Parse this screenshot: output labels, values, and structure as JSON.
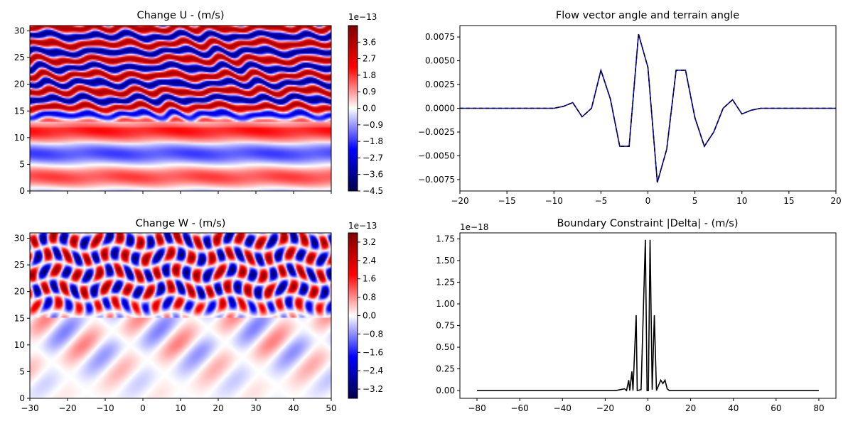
{
  "chart_data": [
    {
      "type": "heatmap",
      "title": "Change U - (m/s)",
      "xlabel": "",
      "ylabel": "",
      "xlim": [
        -30,
        50
      ],
      "ylim": [
        0,
        31
      ],
      "xticks": [],
      "yticks": [
        0,
        5,
        10,
        15,
        20,
        25,
        30
      ],
      "colormap": "seismic",
      "colorbar": {
        "offset_label": "1e−13",
        "range": [
          -4.5,
          4.5
        ],
        "ticks": [
          3.6,
          2.7,
          1.8,
          0.9,
          0.0,
          -0.9,
          -1.8,
          -2.7,
          -3.6,
          -4.5
        ],
        "tick_labels": [
          "3.6",
          "2.7",
          "1.8",
          "0.9",
          "0.0",
          "−0.9",
          "−1.8",
          "−2.7",
          "−3.6",
          "−4.5"
        ]
      }
    },
    {
      "type": "line",
      "title": "Flow vector angle and terrain angle",
      "xlabel": "",
      "ylabel": "",
      "xlim": [
        -20,
        20
      ],
      "ylim": [
        -0.0087,
        0.0087
      ],
      "xticks": [
        -20,
        -15,
        -10,
        -5,
        0,
        5,
        10,
        15,
        20
      ],
      "xtick_labels": [
        "−20",
        "−15",
        "−10",
        "−5",
        "0",
        "5",
        "10",
        "15",
        "20"
      ],
      "yticks": [
        0.0075,
        0.005,
        0.0025,
        0.0,
        -0.0025,
        -0.005,
        -0.0075
      ],
      "ytick_labels": [
        "0.0075",
        "0.0050",
        "0.0025",
        "0.0000",
        "−0.0025",
        "−0.0050",
        "−0.0075"
      ],
      "x": [
        -20,
        -19,
        -18,
        -17,
        -16,
        -15,
        -14,
        -13,
        -12,
        -11,
        -10,
        -9,
        -8,
        -7,
        -6,
        -5,
        -4,
        -3,
        -2,
        -1,
        0,
        1,
        2,
        3,
        4,
        5,
        6,
        7,
        8,
        9,
        10,
        11,
        12,
        13,
        14,
        15,
        16,
        17,
        18,
        19,
        20
      ],
      "series": [
        {
          "color": "#0000ff",
          "dash": "solid",
          "values": [
            0,
            0,
            0,
            0,
            0,
            0,
            0,
            0,
            0,
            0,
            0,
            0.0002,
            0.0006,
            -0.0009,
            0,
            0.004,
            0.001,
            -0.004,
            -0.004,
            0.0078,
            0.0043,
            -0.0078,
            -0.0043,
            0.004,
            0.004,
            -0.001,
            -0.004,
            -0.0025,
            0,
            0.0009,
            -0.0006,
            -0.0002,
            0,
            0,
            0,
            0,
            0,
            0,
            0,
            0,
            0
          ]
        },
        {
          "color": "#000000",
          "dash": "dashed",
          "values": [
            0,
            0,
            0,
            0,
            0,
            0,
            0,
            0,
            0,
            0,
            0,
            0.0002,
            0.0006,
            -0.0009,
            0,
            0.004,
            0.001,
            -0.004,
            -0.004,
            0.0078,
            0.0043,
            -0.0078,
            -0.0043,
            0.004,
            0.004,
            -0.001,
            -0.004,
            -0.0025,
            0,
            0.0009,
            -0.0006,
            -0.0002,
            0,
            0,
            0,
            0,
            0,
            0,
            0,
            0,
            0
          ]
        }
      ]
    },
    {
      "type": "heatmap",
      "title": "Change W - (m/s)",
      "xlabel": "",
      "ylabel": "",
      "xlim": [
        -30,
        50
      ],
      "ylim": [
        0,
        31
      ],
      "xticks": [
        -30,
        -20,
        -10,
        0,
        10,
        20,
        30,
        40,
        50
      ],
      "xtick_labels": [
        "−30",
        "−20",
        "−10",
        "0",
        "10",
        "20",
        "30",
        "40",
        "50"
      ],
      "yticks": [
        0,
        5,
        10,
        15,
        20,
        25,
        30
      ],
      "colormap": "seismic",
      "colorbar": {
        "offset_label": "1e−13",
        "range": [
          -3.6,
          3.6
        ],
        "ticks": [
          3.2,
          2.4,
          1.6,
          0.8,
          0.0,
          -0.8,
          -1.6,
          -2.4,
          -3.2
        ],
        "tick_labels": [
          "3.2",
          "2.4",
          "1.6",
          "0.8",
          "0.0",
          "−0.8",
          "−1.6",
          "−2.4",
          "−3.2"
        ]
      }
    },
    {
      "type": "line",
      "title": "Boundary Constraint |Delta| - (m/s)",
      "xlabel": "",
      "ylabel": "",
      "offset_label": "1e−18",
      "xlim": [
        -88,
        88
      ],
      "ylim": [
        -0.09,
        1.82
      ],
      "xticks": [
        -80,
        -60,
        -40,
        -20,
        0,
        20,
        40,
        60,
        80
      ],
      "xtick_labels": [
        "−80",
        "−60",
        "−40",
        "−20",
        "0",
        "20",
        "40",
        "60",
        "80"
      ],
      "yticks": [
        0.0,
        0.25,
        0.5,
        0.75,
        1.0,
        1.25,
        1.5,
        1.75
      ],
      "ytick_labels": [
        "0.00",
        "0.25",
        "0.50",
        "0.75",
        "1.00",
        "1.25",
        "1.50",
        "1.75"
      ],
      "series": [
        {
          "color": "#000000",
          "points": [
            [
              -80,
              0
            ],
            [
              -15,
              0
            ],
            [
              -13,
              0.01
            ],
            [
              -11,
              0.02
            ],
            [
              -10,
              0
            ],
            [
              -9,
              0.12
            ],
            [
              -8.5,
              0
            ],
            [
              -7.5,
              0.22
            ],
            [
              -7,
              0
            ],
            [
              -5.5,
              0.87
            ],
            [
              -5,
              0
            ],
            [
              -3.2,
              0.01
            ],
            [
              -1.2,
              1.74
            ],
            [
              -0.4,
              0
            ],
            [
              0.2,
              0
            ],
            [
              1,
              1.74
            ],
            [
              2,
              0.01
            ],
            [
              3,
              0.87
            ],
            [
              4,
              0
            ],
            [
              6,
              0.12
            ],
            [
              7,
              0.08
            ],
            [
              8,
              0.12
            ],
            [
              9,
              0.02
            ],
            [
              10,
              0
            ],
            [
              80,
              0
            ]
          ]
        }
      ]
    }
  ]
}
